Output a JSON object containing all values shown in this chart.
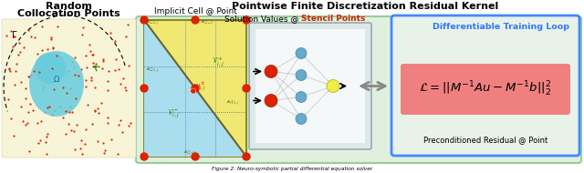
{
  "title": "Pointwise Finite Discretization Residual Kernel",
  "left_title_line1": "Random",
  "left_title_line2": "Collocation Points",
  "caption": "Figure 2: Neuro-symbolic partial differential equation solver",
  "outer_bg": "#dff0df",
  "outer_edge": "#99cc99",
  "left_bg": "#f8f4d8",
  "cell_yellow": "#f0e870",
  "cell_blue": "#aaddee",
  "nn_bg": "#e8eeee",
  "nn_edge": "#99aaaa",
  "right_bg": "#e8f2e8",
  "right_edge": "#4488ff",
  "loss_bg": "#f08080",
  "diff_loop_color": "#3377ff",
  "stencil_color": "#cc2200",
  "red_dot": "#dd2200",
  "cyan_blob": "#66ccdd",
  "grid_dot": "#cccccc",
  "implicit_label": "Implicit Cell @ Point",
  "solution_label": "Solution Values @ ",
  "stencil_label": "Stencil Points",
  "diff_label": "Differentiable Training Loop",
  "precond_label": "Preconditioned Residual @ Point",
  "loss_eq": "$\\mathcal{L} = ||M^{-1}Au - M^{-1}b||_2^2$"
}
